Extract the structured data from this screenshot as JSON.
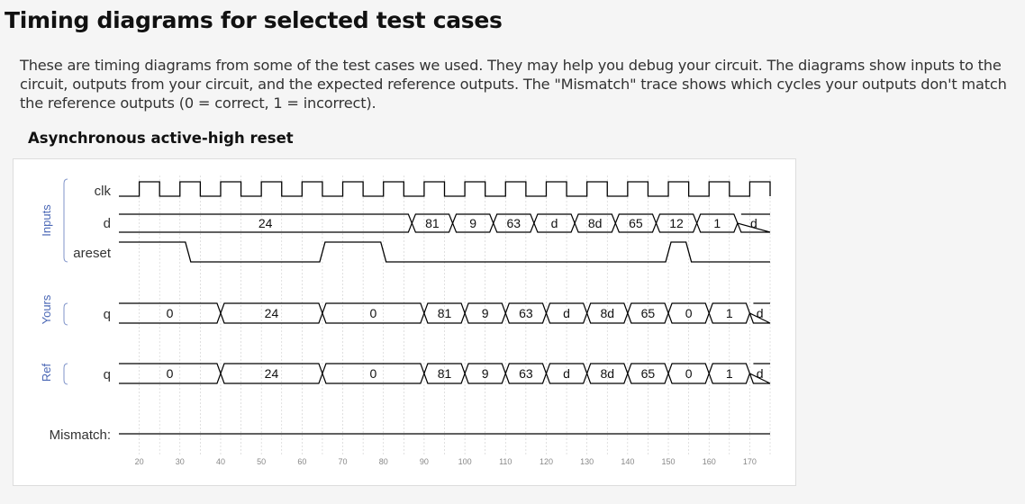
{
  "title": "Timing diagrams for selected test cases",
  "intro": "These are timing diagrams from some of the test cases we used. They may help you debug your circuit. The diagrams show inputs to the circuit, outputs from your circuit, and the expected reference outputs. The \"Mismatch\" trace shows which cycles your outputs don't match the reference outputs (0 = correct, 1 = incorrect).",
  "section": "Asynchronous active-high reset",
  "colors": {
    "wave": "#000000",
    "grid": "#cccccc",
    "group_label": "#4a67b5",
    "group_bracket": "#7f93c9"
  },
  "chart_data": {
    "type": "timing",
    "time_range": [
      15,
      175
    ],
    "x_ticks": [
      20,
      30,
      40,
      50,
      60,
      70,
      80,
      90,
      100,
      110,
      120,
      130,
      140,
      150,
      160,
      170
    ],
    "clock": {
      "label": "clk",
      "half_period": 5,
      "first_rise": 20
    },
    "groups": [
      {
        "name": "Inputs",
        "signals": [
          "clk",
          "d",
          "areset"
        ]
      },
      {
        "name": "Yours",
        "signals": [
          "q"
        ]
      },
      {
        "name": "Ref",
        "signals": [
          "q"
        ]
      }
    ],
    "d": {
      "label": "d",
      "segments": [
        {
          "start": 15,
          "end": 87,
          "value": "24"
        },
        {
          "start": 87,
          "end": 97,
          "value": "81"
        },
        {
          "start": 97,
          "end": 107,
          "value": "9"
        },
        {
          "start": 107,
          "end": 117,
          "value": "63"
        },
        {
          "start": 117,
          "end": 127,
          "value": "d"
        },
        {
          "start": 127,
          "end": 137,
          "value": "8d"
        },
        {
          "start": 137,
          "end": 147,
          "value": "65"
        },
        {
          "start": 147,
          "end": 157,
          "value": "12"
        },
        {
          "start": 157,
          "end": 167,
          "value": "1"
        },
        {
          "start": 167,
          "end": 175,
          "value": "d"
        }
      ]
    },
    "areset": {
      "label": "areset",
      "levels": [
        {
          "start": 15,
          "end": 32,
          "level": 1
        },
        {
          "start": 32,
          "end": 65,
          "level": 0
        },
        {
          "start": 65,
          "end": 80,
          "level": 1
        },
        {
          "start": 80,
          "end": 150,
          "level": 0
        },
        {
          "start": 150,
          "end": 155,
          "level": 1
        },
        {
          "start": 155,
          "end": 175,
          "level": 0
        }
      ]
    },
    "q_yours": {
      "label": "q",
      "segments": [
        {
          "start": 15,
          "end": 40,
          "value": "0"
        },
        {
          "start": 40,
          "end": 65,
          "value": "24"
        },
        {
          "start": 65,
          "end": 90,
          "value": "0"
        },
        {
          "start": 90,
          "end": 100,
          "value": "81"
        },
        {
          "start": 100,
          "end": 110,
          "value": "9"
        },
        {
          "start": 110,
          "end": 120,
          "value": "63"
        },
        {
          "start": 120,
          "end": 130,
          "value": "d"
        },
        {
          "start": 130,
          "end": 140,
          "value": "8d"
        },
        {
          "start": 140,
          "end": 150,
          "value": "65"
        },
        {
          "start": 150,
          "end": 160,
          "value": "0"
        },
        {
          "start": 160,
          "end": 170,
          "value": "1"
        },
        {
          "start": 170,
          "end": 175,
          "value": "d"
        }
      ]
    },
    "q_ref": {
      "label": "q",
      "segments": [
        {
          "start": 15,
          "end": 40,
          "value": "0"
        },
        {
          "start": 40,
          "end": 65,
          "value": "24"
        },
        {
          "start": 65,
          "end": 90,
          "value": "0"
        },
        {
          "start": 90,
          "end": 100,
          "value": "81"
        },
        {
          "start": 100,
          "end": 110,
          "value": "9"
        },
        {
          "start": 110,
          "end": 120,
          "value": "63"
        },
        {
          "start": 120,
          "end": 130,
          "value": "d"
        },
        {
          "start": 130,
          "end": 140,
          "value": "8d"
        },
        {
          "start": 140,
          "end": 150,
          "value": "65"
        },
        {
          "start": 150,
          "end": 160,
          "value": "0"
        },
        {
          "start": 160,
          "end": 170,
          "value": "1"
        },
        {
          "start": 170,
          "end": 175,
          "value": "d"
        }
      ]
    },
    "mismatch": {
      "label": "Mismatch:",
      "levels": [
        {
          "start": 15,
          "end": 175,
          "level": 0
        }
      ]
    }
  }
}
